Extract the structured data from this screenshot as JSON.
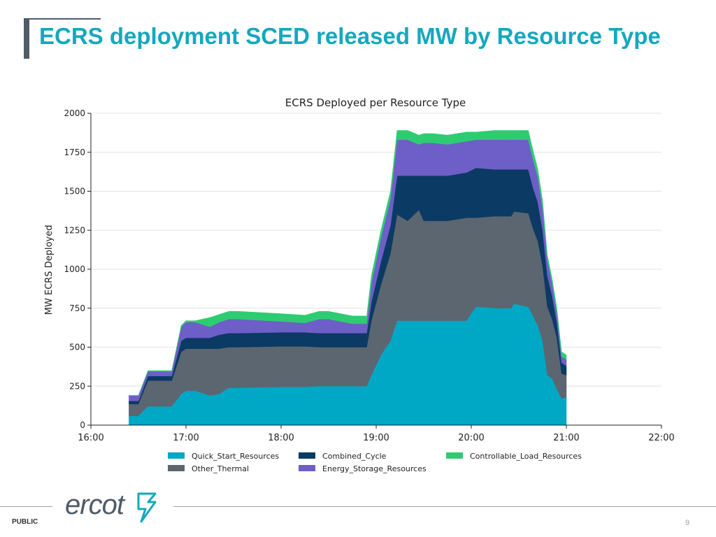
{
  "slide": {
    "title": "ECRS deployment SCED released MW by Resource Type",
    "footer_label": "PUBLIC",
    "page_number": "9",
    "logo_text": "ercot"
  },
  "colors": {
    "title": "#14a8be",
    "accent_bar": "#4f5b66"
  },
  "chart_data": {
    "type": "area",
    "stacked": true,
    "title": "ECRS Deployed per Resource Type",
    "xlabel": "",
    "ylabel": "MW ECRS Deployed",
    "xlim": [
      16,
      22
    ],
    "ylim": [
      0,
      2000
    ],
    "x_ticks": [
      16,
      17,
      18,
      19,
      20,
      21,
      22
    ],
    "x_tick_labels": [
      "16:00",
      "17:00",
      "18:00",
      "19:00",
      "20:00",
      "21:00",
      "22:00"
    ],
    "y_ticks": [
      0,
      250,
      500,
      750,
      1000,
      1250,
      1500,
      1750,
      2000
    ],
    "y_tick_labels": [
      "0",
      "250",
      "500",
      "750",
      "1000",
      "1250",
      "1500",
      "1750",
      "2000"
    ],
    "grid": "horizontal",
    "legend_position": "bottom",
    "x": [
      16.4,
      16.5,
      16.6,
      16.85,
      16.95,
      17.0,
      17.1,
      17.25,
      17.35,
      17.45,
      17.55,
      18.0,
      18.25,
      18.4,
      18.5,
      18.75,
      18.9,
      18.95,
      19.05,
      19.15,
      19.22,
      19.33,
      19.45,
      19.5,
      19.6,
      19.75,
      19.95,
      20.05,
      20.25,
      20.42,
      20.45,
      20.58,
      20.6,
      20.65,
      20.7,
      20.75,
      20.8,
      20.85,
      20.9,
      20.95,
      21.0
    ],
    "series": [
      {
        "name": "Quick_Start_Resources",
        "color": "#00a8c6",
        "values": [
          60,
          60,
          120,
          120,
          200,
          220,
          220,
          190,
          200,
          240,
          240,
          245,
          245,
          250,
          250,
          250,
          250,
          320,
          450,
          540,
          670,
          670,
          670,
          670,
          670,
          670,
          670,
          760,
          750,
          750,
          780,
          760,
          760,
          700,
          640,
          540,
          320,
          300,
          230,
          170,
          180
        ]
      },
      {
        "name": "Other_Thermal",
        "color": "#5b6670",
        "values": [
          75,
          75,
          165,
          165,
          270,
          270,
          270,
          300,
          290,
          260,
          260,
          260,
          260,
          250,
          250,
          250,
          250,
          350,
          450,
          560,
          680,
          640,
          710,
          640,
          640,
          640,
          660,
          570,
          590,
          590,
          590,
          600,
          600,
          560,
          540,
          480,
          440,
          380,
          330,
          160,
          140
        ]
      },
      {
        "name": "Combined_Cycle",
        "color": "#0b3a64",
        "values": [
          20,
          20,
          30,
          30,
          70,
          70,
          70,
          70,
          90,
          90,
          90,
          90,
          90,
          90,
          90,
          90,
          90,
          120,
          150,
          180,
          250,
          290,
          220,
          290,
          290,
          290,
          290,
          320,
          300,
          300,
          270,
          280,
          280,
          260,
          250,
          230,
          200,
          150,
          100,
          70,
          60
        ]
      },
      {
        "name": "Energy_Storage_Resources",
        "color": "#6e5ec7",
        "values": [
          35,
          35,
          30,
          30,
          90,
          100,
          100,
          70,
          80,
          90,
          90,
          70,
          60,
          90,
          90,
          60,
          60,
          120,
          150,
          170,
          230,
          230,
          200,
          210,
          210,
          200,
          200,
          180,
          190,
          190,
          190,
          190,
          190,
          180,
          160,
          140,
          100,
          80,
          60,
          40,
          40
        ]
      },
      {
        "name": "Controllable_Load_Resources",
        "color": "#2ecc71",
        "values": [
          0,
          0,
          5,
          5,
          10,
          10,
          10,
          60,
          50,
          50,
          50,
          50,
          50,
          50,
          50,
          50,
          50,
          50,
          50,
          50,
          60,
          60,
          60,
          60,
          60,
          60,
          60,
          50,
          60,
          60,
          60,
          60,
          60,
          60,
          50,
          50,
          30,
          30,
          30,
          30,
          30
        ]
      }
    ],
    "legend_entries": [
      "Quick_Start_Resources",
      "Other_Thermal",
      "Combined_Cycle",
      "Energy_Storage_Resources",
      "Controllable_Load_Resources"
    ]
  }
}
